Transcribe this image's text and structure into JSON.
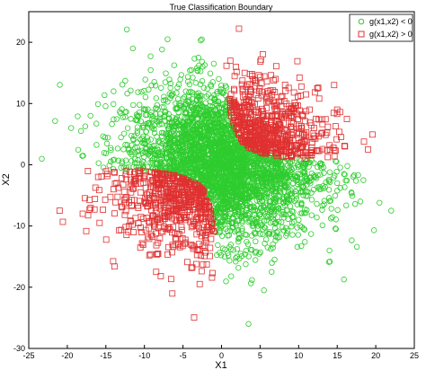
{
  "chart_data": {
    "type": "scatter",
    "title": "True Classification Boundary",
    "xlabel": "X1",
    "ylabel": "X2",
    "xlim": [
      -25,
      25
    ],
    "ylim": [
      -30,
      25
    ],
    "xticks": [
      -25,
      -20,
      -15,
      -10,
      -5,
      0,
      5,
      10,
      15,
      20,
      25
    ],
    "yticks": [
      -30,
      -20,
      -10,
      0,
      10,
      20
    ],
    "grid": false,
    "legend_position": "top-right",
    "series": [
      {
        "name": "g(x1,x2) < 0",
        "marker": "circle",
        "color": "#2ecc2e",
        "region": "x1*x2 < ~10 (quadrants II, IV and near axes)",
        "sample_points": [
          [
            -11.5,
            19.0
          ],
          [
            -7.0,
            20.5
          ],
          [
            -3.0,
            17.5
          ],
          [
            -1.0,
            16.5
          ],
          [
            -14.0,
            12.0
          ],
          [
            -19.5,
            6.0
          ],
          [
            -17.0,
            8.0
          ],
          [
            -10.0,
            9.0
          ],
          [
            -6.0,
            4.0
          ],
          [
            -2.0,
            8.0
          ],
          [
            3.0,
            0.5
          ],
          [
            8.0,
            -1.0
          ],
          [
            12.0,
            -2.0
          ],
          [
            15.0,
            -3.0
          ],
          [
            18.0,
            -6.0
          ],
          [
            4.0,
            -10.0
          ],
          [
            2.0,
            -15.0
          ],
          [
            6.5,
            -17.5
          ],
          [
            5.5,
            -20.5
          ],
          [
            3.5,
            -26.0
          ],
          [
            22.0,
            -7.5
          ],
          [
            10.0,
            -9.0
          ],
          [
            14.0,
            -14.0
          ],
          [
            -5.0,
            1.5
          ],
          [
            1.0,
            1.0
          ]
        ]
      },
      {
        "name": "g(x1,x2) > 0",
        "marker": "square",
        "color": "#e03030",
        "region": "x1*x2 > ~10 (quadrants I and III)",
        "sample_points": [
          [
            3.0,
            15.0
          ],
          [
            6.0,
            12.0
          ],
          [
            9.0,
            8.0
          ],
          [
            12.0,
            6.0
          ],
          [
            16.0,
            3.0
          ],
          [
            19.0,
            2.5
          ],
          [
            2.0,
            9.0
          ],
          [
            5.0,
            4.0
          ],
          [
            -3.0,
            -14.0
          ],
          [
            -6.0,
            -9.0
          ],
          [
            -10.0,
            -6.0
          ],
          [
            -14.0,
            -4.0
          ],
          [
            -18.0,
            -8.0
          ],
          [
            -21.0,
            -7.5
          ],
          [
            -2.0,
            -6.0
          ],
          [
            -8.0,
            -12.0
          ],
          [
            -12.0,
            -10.0
          ],
          [
            -16.0,
            -2.0
          ],
          [
            7.0,
            14.0
          ],
          [
            15.0,
            9.0
          ]
        ]
      }
    ]
  }
}
